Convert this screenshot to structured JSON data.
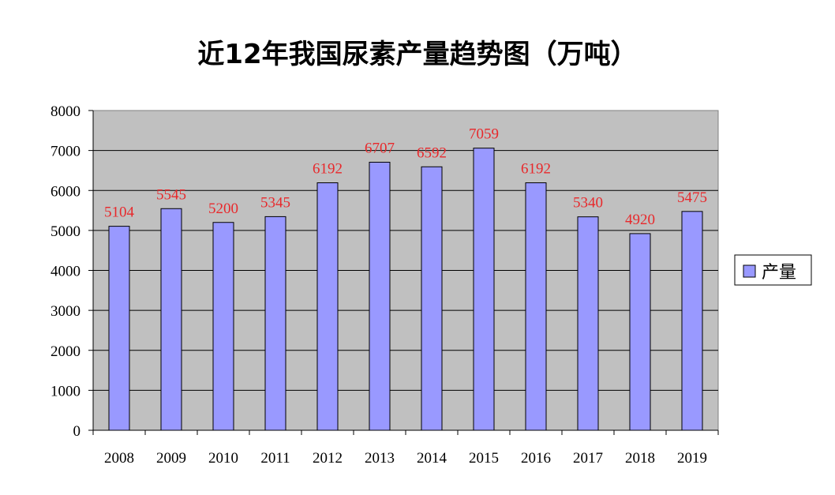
{
  "chart_data": {
    "type": "bar",
    "title": "近12年我国尿素产量趋势图（万吨）",
    "categories": [
      "2008",
      "2009",
      "2010",
      "2011",
      "2012",
      "2013",
      "2014",
      "2015",
      "2016",
      "2017",
      "2018",
      "2019"
    ],
    "series": [
      {
        "name": "产量",
        "values": [
          5104,
          5545,
          5200,
          5345,
          6192,
          6707,
          6592,
          7059,
          6192,
          5340,
          4920,
          5475
        ]
      }
    ],
    "ylim": [
      0,
      8000
    ],
    "yticks": [
      "0",
      "1000",
      "2000",
      "3000",
      "4000",
      "5000",
      "6000",
      "7000",
      "8000"
    ],
    "grid": true,
    "legend_position": "right",
    "data_labels": true,
    "colors": {
      "bar_fill": "#9999ff",
      "bar_stroke": "#000000",
      "plot_background": "#c0c0c0",
      "value_label": "#e8282b"
    }
  }
}
